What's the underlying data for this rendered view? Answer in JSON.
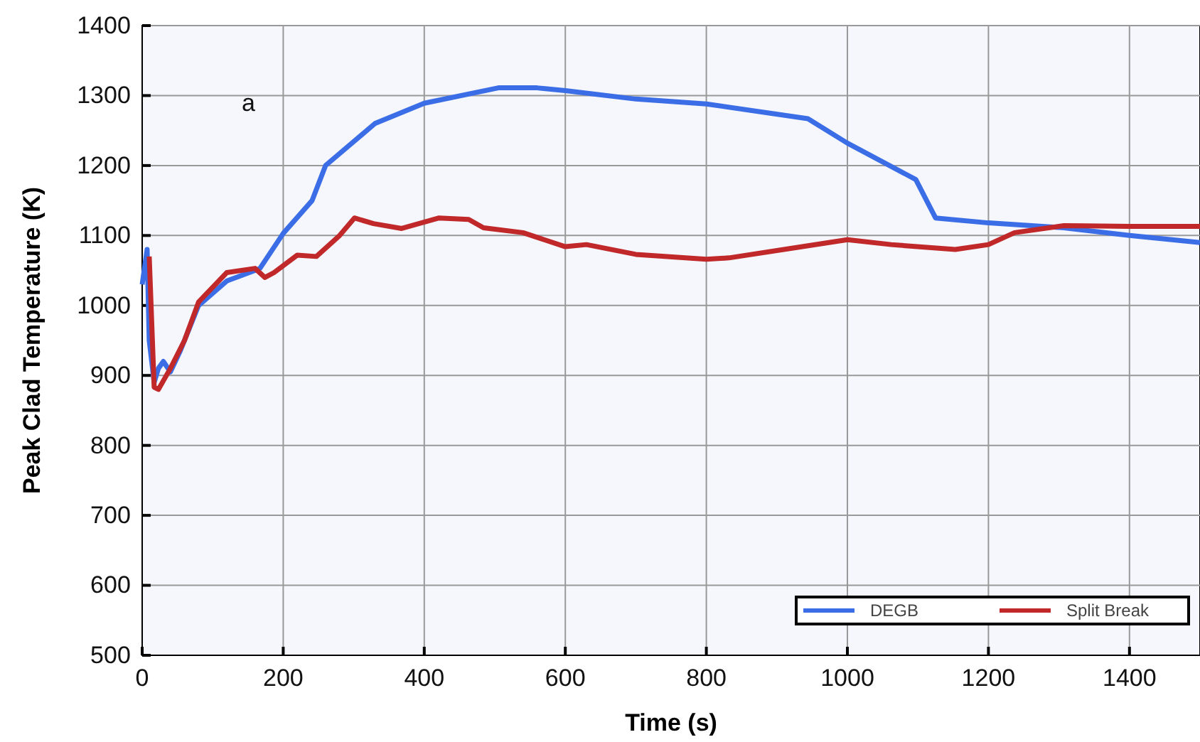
{
  "chart_data": {
    "type": "line",
    "xlabel": "Time (s)",
    "ylabel": "Peak Clad Temperature (K)",
    "annotations": [
      "a"
    ],
    "xlim": [
      0,
      1500
    ],
    "ylim": [
      500,
      1400
    ],
    "xticks": [
      0,
      200,
      400,
      600,
      800,
      1000,
      1200,
      1400
    ],
    "yticks": [
      500,
      600,
      700,
      800,
      900,
      1000,
      1100,
      1200,
      1300,
      1400
    ],
    "grid": true,
    "legend": "bottom right",
    "marker": "none",
    "line_style": "solid",
    "series": [
      {
        "name": "DEGB",
        "color": "#3b6ee6",
        "x": [
          0,
          7,
          10,
          17,
          23,
          30,
          40,
          54,
          80,
          120,
          160,
          167,
          200,
          241,
          260,
          330,
          400,
          505,
          560,
          600,
          700,
          800,
          944,
          1000,
          1097,
          1125,
          1200,
          1307,
          1400,
          1500
        ],
        "values": [
          1030,
          1080,
          950,
          890,
          910,
          920,
          905,
          935,
          1000,
          1035,
          1050,
          1053,
          1103,
          1150,
          1200,
          1260,
          1289,
          1311,
          1311,
          1307,
          1295,
          1288,
          1267,
          1232,
          1180,
          1125,
          1118,
          1111,
          1100,
          1090
        ]
      },
      {
        "name": "Split Break",
        "color": "#c0282a",
        "x": [
          10,
          17,
          23,
          40,
          60,
          80,
          120,
          160,
          174,
          187,
          220,
          247,
          280,
          301,
          328,
          368,
          421,
          463,
          484,
          540,
          600,
          630,
          700,
          800,
          832,
          923,
          1000,
          1062,
          1153,
          1200,
          1237,
          1307,
          1400,
          1500
        ],
        "values": [
          1070,
          883,
          880,
          910,
          950,
          1005,
          1047,
          1053,
          1040,
          1047,
          1072,
          1070,
          1100,
          1125,
          1117,
          1110,
          1125,
          1123,
          1111,
          1104,
          1084,
          1087,
          1073,
          1066,
          1068,
          1082,
          1094,
          1087,
          1080,
          1087,
          1104,
          1114,
          1113,
          1113
        ]
      }
    ]
  }
}
